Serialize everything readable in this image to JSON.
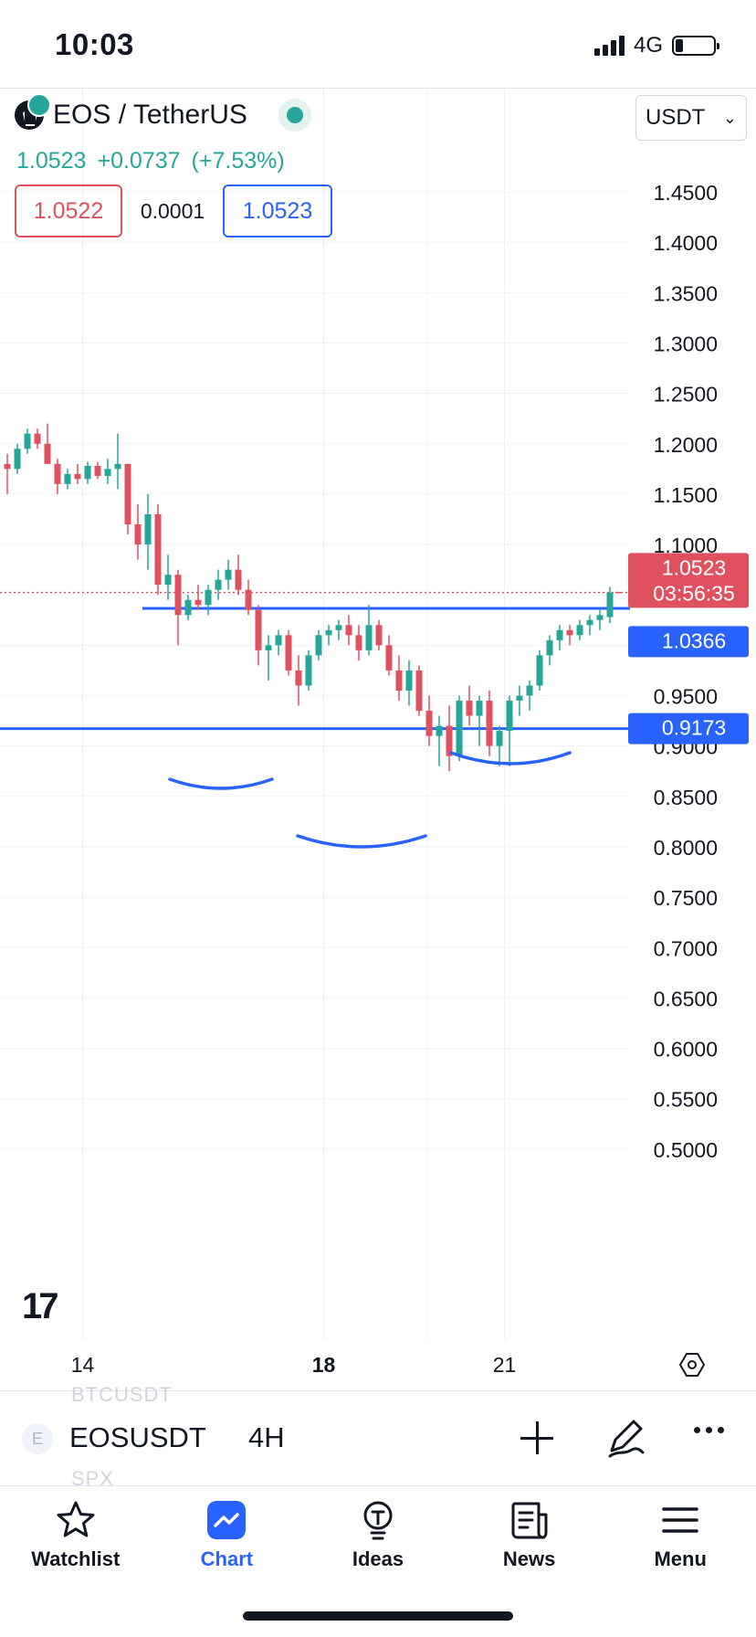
{
  "status": {
    "time": "10:03",
    "network": "4G",
    "battery_level": 0.2
  },
  "header": {
    "title": "EOS / TetherUS",
    "price": "1.0523",
    "change": "+0.0737",
    "change_pct": "(+7.53%)",
    "bid": "1.0522",
    "spread": "0.0001",
    "ask": "1.0523",
    "currency": "USDT"
  },
  "colors": {
    "up": "#26a69a",
    "down": "#e05160",
    "line": "#2962ff"
  },
  "chart_data": {
    "type": "candlestick",
    "ylim": [
      0.46,
      1.51
    ],
    "y_ticks": [
      "1.4500",
      "1.4000",
      "1.3500",
      "1.3000",
      "1.2500",
      "1.2000",
      "1.1500",
      "1.1000",
      "0.9500",
      "0.9000",
      "0.8500",
      "0.8000",
      "0.7500",
      "0.7000",
      "0.6500",
      "0.6000",
      "0.5500",
      "0.5000"
    ],
    "x_labels": [
      {
        "text": "14",
        "index": 7.5,
        "bold": false
      },
      {
        "text": "18",
        "index": 31.5,
        "bold": true
      },
      {
        "text": "21",
        "index": 49.5,
        "bold": false
      }
    ],
    "total_slots": 72,
    "candles": [
      [
        1.18,
        1.19,
        1.15,
        1.175
      ],
      [
        1.175,
        1.2,
        1.17,
        1.195
      ],
      [
        1.195,
        1.215,
        1.19,
        1.21
      ],
      [
        1.21,
        1.215,
        1.195,
        1.2
      ],
      [
        1.2,
        1.22,
        1.18,
        1.18
      ],
      [
        1.18,
        1.185,
        1.15,
        1.16
      ],
      [
        1.16,
        1.175,
        1.155,
        1.17
      ],
      [
        1.17,
        1.18,
        1.16,
        1.165
      ],
      [
        1.165,
        1.182,
        1.16,
        1.178
      ],
      [
        1.178,
        1.182,
        1.165,
        1.168
      ],
      [
        1.168,
        1.185,
        1.16,
        1.175
      ],
      [
        1.175,
        1.21,
        1.155,
        1.18
      ],
      [
        1.18,
        1.18,
        1.11,
        1.12
      ],
      [
        1.12,
        1.14,
        1.085,
        1.1
      ],
      [
        1.1,
        1.15,
        1.075,
        1.13
      ],
      [
        1.13,
        1.14,
        1.05,
        1.06
      ],
      [
        1.06,
        1.09,
        1.045,
        1.07
      ],
      [
        1.07,
        1.075,
        1.0,
        1.03
      ],
      [
        1.03,
        1.05,
        1.025,
        1.045
      ],
      [
        1.045,
        1.06,
        1.035,
        1.04
      ],
      [
        1.04,
        1.06,
        1.03,
        1.055
      ],
      [
        1.055,
        1.075,
        1.045,
        1.065
      ],
      [
        1.065,
        1.085,
        1.055,
        1.075
      ],
      [
        1.075,
        1.09,
        1.05,
        1.055
      ],
      [
        1.055,
        1.065,
        1.03,
        1.035
      ],
      [
        1.035,
        1.04,
        0.98,
        0.995
      ],
      [
        0.995,
        1.01,
        0.965,
        1.0
      ],
      [
        1.0,
        1.015,
        0.99,
        1.01
      ],
      [
        1.01,
        1.015,
        0.97,
        0.975
      ],
      [
        0.975,
        0.99,
        0.94,
        0.96
      ],
      [
        0.96,
        0.995,
        0.955,
        0.99
      ],
      [
        0.99,
        1.015,
        0.985,
        1.01
      ],
      [
        1.01,
        1.02,
        1.0,
        1.015
      ],
      [
        1.015,
        1.025,
        1.005,
        1.02
      ],
      [
        1.02,
        1.03,
        1.0,
        1.01
      ],
      [
        1.01,
        1.02,
        0.985,
        0.995
      ],
      [
        0.995,
        1.04,
        0.99,
        1.02
      ],
      [
        1.02,
        1.025,
        0.995,
        1.0
      ],
      [
        1.0,
        1.01,
        0.97,
        0.975
      ],
      [
        0.975,
        0.99,
        0.945,
        0.955
      ],
      [
        0.955,
        0.985,
        0.94,
        0.975
      ],
      [
        0.975,
        0.98,
        0.93,
        0.935
      ],
      [
        0.935,
        0.95,
        0.9,
        0.91
      ],
      [
        0.91,
        0.93,
        0.88,
        0.92
      ],
      [
        0.92,
        0.94,
        0.875,
        0.89
      ],
      [
        0.89,
        0.95,
        0.885,
        0.945
      ],
      [
        0.945,
        0.96,
        0.92,
        0.93
      ],
      [
        0.93,
        0.95,
        0.9,
        0.945
      ],
      [
        0.945,
        0.955,
        0.89,
        0.9
      ],
      [
        0.9,
        0.92,
        0.88,
        0.915
      ],
      [
        0.915,
        0.95,
        0.88,
        0.945
      ],
      [
        0.945,
        0.96,
        0.93,
        0.95
      ],
      [
        0.95,
        0.965,
        0.935,
        0.96
      ],
      [
        0.96,
        0.995,
        0.955,
        0.99
      ],
      [
        0.99,
        1.01,
        0.98,
        1.005
      ],
      [
        1.005,
        1.02,
        0.995,
        1.015
      ],
      [
        1.015,
        1.02,
        1.0,
        1.01
      ],
      [
        1.01,
        1.025,
        1.005,
        1.02
      ],
      [
        1.02,
        1.03,
        1.01,
        1.025
      ],
      [
        1.025,
        1.035,
        1.015,
        1.03
      ]
    ],
    "last_price": {
      "value": 1.0523,
      "label": "1.0523",
      "countdown": "03:56:35"
    },
    "horizontal_lines": [
      {
        "value": 1.0366,
        "label": "1.0366"
      },
      {
        "value": 0.9173,
        "label": "0.9173"
      }
    ]
  },
  "watermark": "17",
  "ghost": {
    "above": "BTCUSDT",
    "below": "SPX"
  },
  "symbol_bar": {
    "letter": "E",
    "symbol": "EOSUSDT",
    "interval": "4H"
  },
  "tabs": [
    {
      "label": "Watchlist",
      "icon": "star-icon"
    },
    {
      "label": "Chart",
      "icon": "chart-icon"
    },
    {
      "label": "Ideas",
      "icon": "lightbulb-icon"
    },
    {
      "label": "News",
      "icon": "news-icon"
    },
    {
      "label": "Menu",
      "icon": "menu-icon"
    }
  ]
}
